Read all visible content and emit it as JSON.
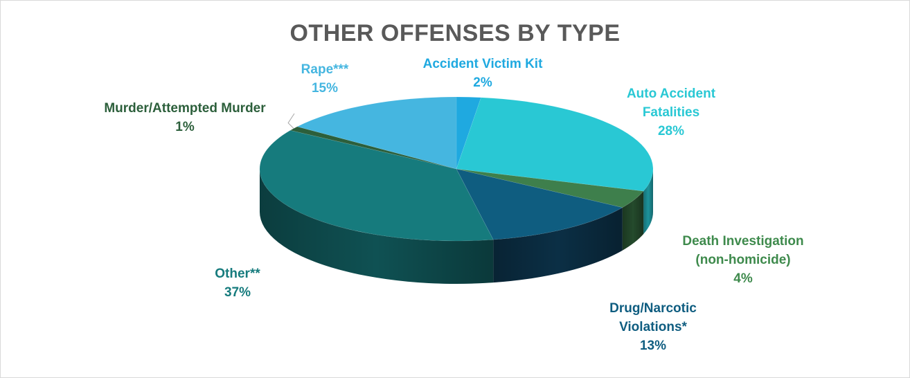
{
  "chart_data": {
    "type": "pie",
    "title": "OTHER OFFENSES BY TYPE",
    "slices": [
      {
        "label_lines": [
          "Accident Victim Kit"
        ],
        "value": 2,
        "percent_label": "2%",
        "color": "#1fa9e0",
        "side": "#1581ab"
      },
      {
        "label_lines": [
          "Auto Accident",
          "Fatalities"
        ],
        "value": 28,
        "percent_label": "28%",
        "color": "#29c8d4",
        "side": "#1d939b"
      },
      {
        "label_lines": [
          "Death Investigation",
          "(non-homicide)"
        ],
        "value": 4,
        "percent_label": "4%",
        "color": "#3e7f4c",
        "side": "#244a2c"
      },
      {
        "label_lines": [
          "Drug/Narcotic",
          "Violations*"
        ],
        "value": 13,
        "percent_label": "13%",
        "color": "#0f5d80",
        "side": "#0b2f45"
      },
      {
        "label_lines": [
          "Other**"
        ],
        "value": 37,
        "percent_label": "37%",
        "color": "#167b7d",
        "side": "#0f5153"
      },
      {
        "label_lines": [
          "Murder/Attempted Murder"
        ],
        "value": 1,
        "percent_label": "1%",
        "color": "#2c5f3b",
        "side": "#1a3822"
      },
      {
        "label_lines": [
          "Rape***"
        ],
        "value": 15,
        "percent_label": "15%",
        "color": "#45b6e0",
        "side": "#2e86a8"
      }
    ],
    "label_colors": [
      "#1fa9e0",
      "#29c8d4",
      "#3e8a4c",
      "#0f5d80",
      "#167b7d",
      "#2c5f3b",
      "#45b6e0"
    ],
    "legend": "none",
    "style": "3d-pie"
  }
}
